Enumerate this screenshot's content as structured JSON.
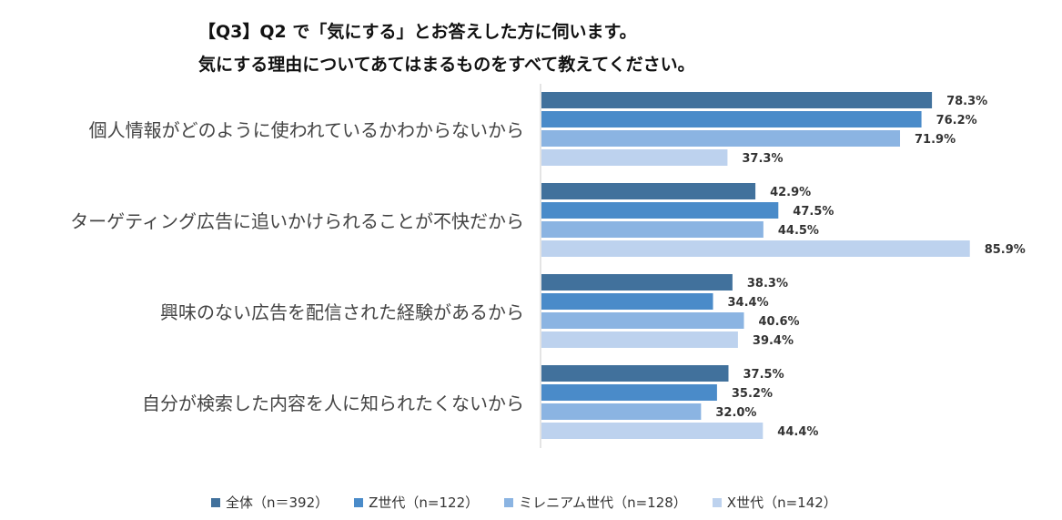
{
  "title": {
    "line1": "【Q3】Q2 で「気にする」とお答えした方に伺います。",
    "line2": "気にする理由についてあてはまるものをすべて教えてください。"
  },
  "chart_data": {
    "type": "bar",
    "orientation": "horizontal",
    "categories": [
      "個人情報がどのように使われているかわからないから",
      "ターゲティング広告に追いかけられることが不快だから",
      "興味のない広告を配信された経験があるから",
      "自分が検索した内容を人に知られたくないから"
    ],
    "series": [
      {
        "name": "全体（n＝392）",
        "color": "#41719C",
        "values": [
          78.3,
          42.9,
          38.3,
          37.5
        ],
        "labels": [
          "78.3%",
          "42.9%",
          "38.3%",
          "37.5%"
        ]
      },
      {
        "name": "Z世代（n=122）",
        "color": "#4A8BC9",
        "values": [
          76.2,
          47.5,
          34.4,
          35.2
        ],
        "labels": [
          "76.2%",
          "47.5%",
          "34.4%",
          "35.2%"
        ]
      },
      {
        "name": "ミレニアム世代（n=128）",
        "color": "#8BB4E2",
        "values": [
          71.9,
          44.5,
          40.6,
          32.0
        ],
        "labels": [
          "71.9%",
          "44.5%",
          "40.6%",
          "32.0%"
        ]
      },
      {
        "name": "X世代（n=142）",
        "color": "#BDD2EE",
        "values": [
          37.3,
          85.9,
          39.4,
          44.4
        ],
        "labels": [
          "37.3%",
          "85.9%",
          "39.4%",
          "44.4%"
        ]
      }
    ],
    "xlim": [
      0,
      100
    ],
    "legend_position": "bottom"
  }
}
